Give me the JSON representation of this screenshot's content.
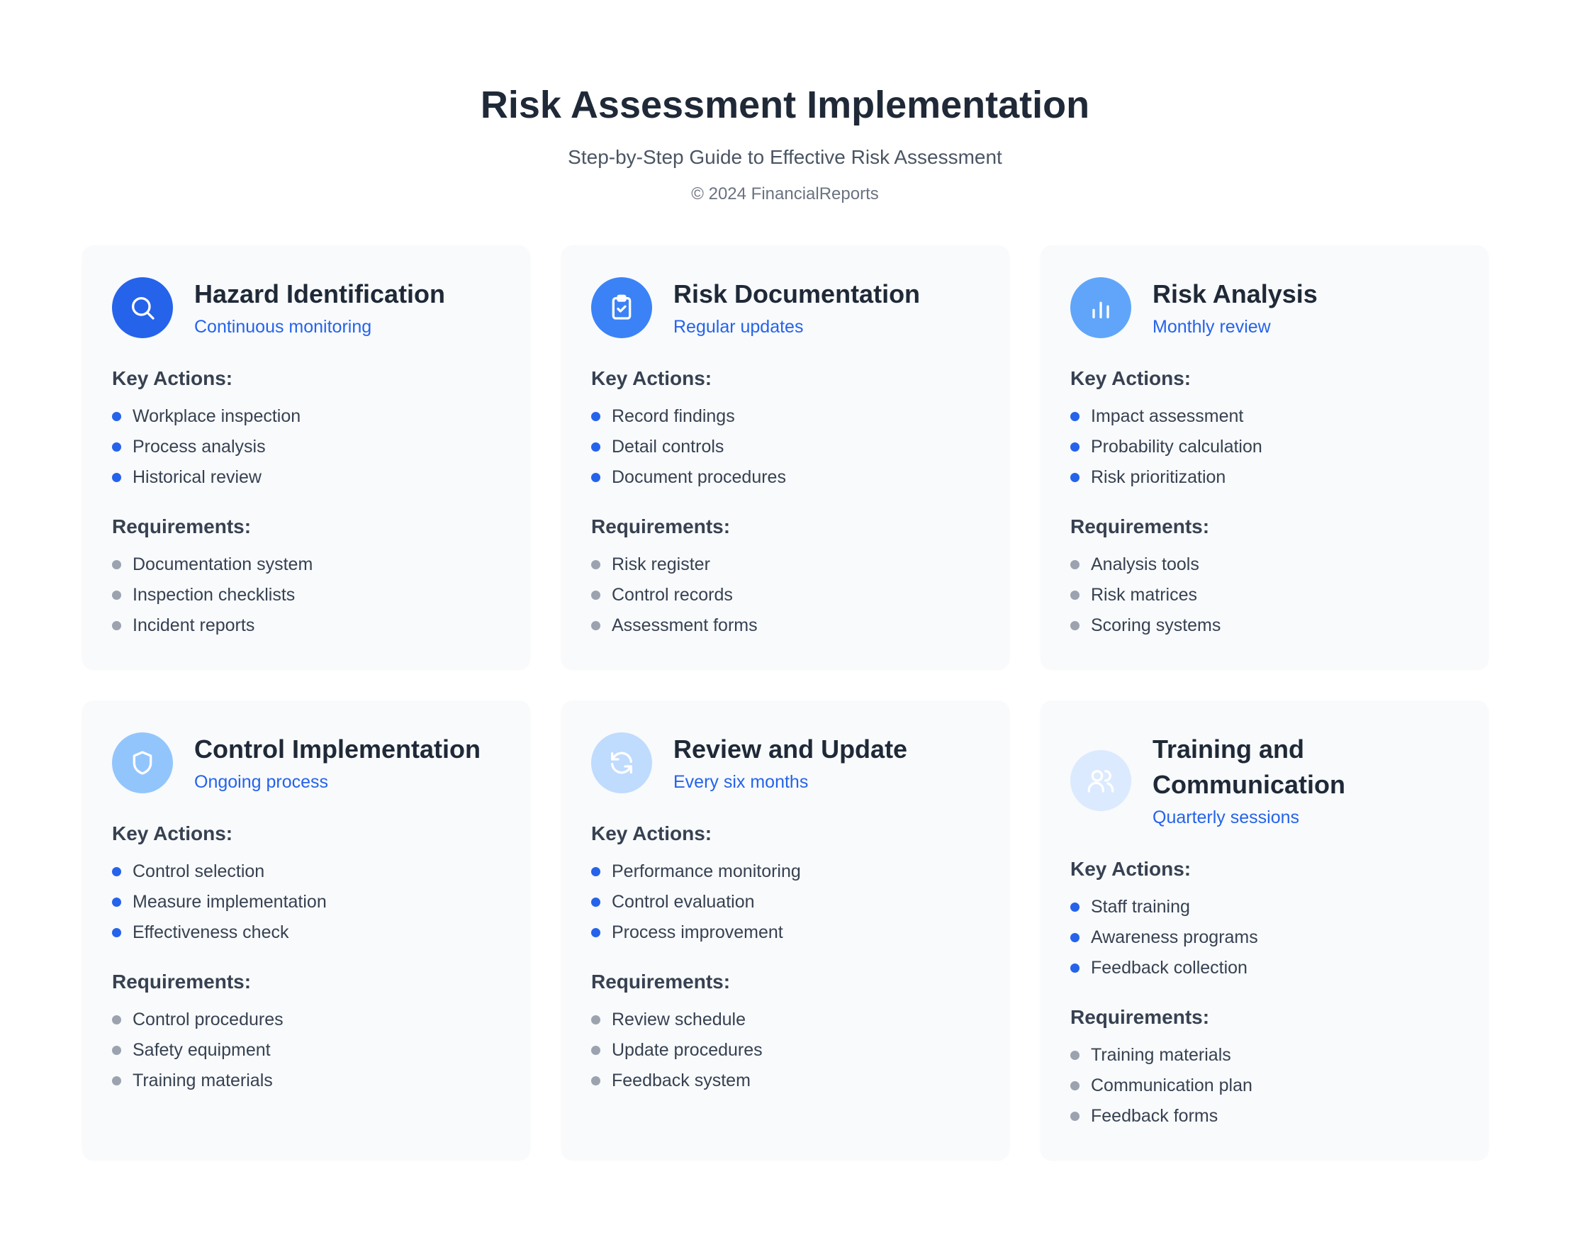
{
  "header": {
    "title": "Risk Assessment Implementation",
    "subtitle": "Step-by-Step Guide to Effective Risk Assessment",
    "copyright": "© 2024 FinancialReports"
  },
  "labels": {
    "actions": "Key Actions:",
    "requirements": "Requirements:"
  },
  "colors": {
    "accent": "#2563eb",
    "bullet_actions": "#2563eb",
    "bullet_requirements": "#9ca3af",
    "card_bg": "#f8fafc"
  },
  "cards": [
    {
      "title": "Hazard Identification",
      "frequency": "Continuous monitoring",
      "icon": "search-icon",
      "icon_color": "#2563eb",
      "actions": [
        "Workplace inspection",
        "Process analysis",
        "Historical review"
      ],
      "requirements": [
        "Documentation system",
        "Inspection checklists",
        "Incident reports"
      ]
    },
    {
      "title": "Risk Documentation",
      "frequency": "Regular updates",
      "icon": "clipboard-check-icon",
      "icon_color": "#3b82f6",
      "actions": [
        "Record findings",
        "Detail controls",
        "Document procedures"
      ],
      "requirements": [
        "Risk register",
        "Control records",
        "Assessment forms"
      ]
    },
    {
      "title": "Risk Analysis",
      "frequency": "Monthly review",
      "icon": "bar-chart-icon",
      "icon_color": "#60a5fa",
      "actions": [
        "Impact assessment",
        "Probability calculation",
        "Risk prioritization"
      ],
      "requirements": [
        "Analysis tools",
        "Risk matrices",
        "Scoring systems"
      ]
    },
    {
      "title": "Control Implementation",
      "frequency": "Ongoing process",
      "icon": "shield-icon",
      "icon_color": "#93c5fd",
      "actions": [
        "Control selection",
        "Measure implementation",
        "Effectiveness check"
      ],
      "requirements": [
        "Control procedures",
        "Safety equipment",
        "Training materials"
      ]
    },
    {
      "title": "Review and Update",
      "frequency": "Every six months",
      "icon": "refresh-icon",
      "icon_color": "#bfdbfe",
      "actions": [
        "Performance monitoring",
        "Control evaluation",
        "Process improvement"
      ],
      "requirements": [
        "Review schedule",
        "Update procedures",
        "Feedback system"
      ]
    },
    {
      "title": "Training and Communication",
      "frequency": "Quarterly sessions",
      "icon": "users-icon",
      "icon_color": "#dbeafe",
      "actions": [
        "Staff training",
        "Awareness programs",
        "Feedback collection"
      ],
      "requirements": [
        "Training materials",
        "Communication plan",
        "Feedback forms"
      ]
    }
  ]
}
